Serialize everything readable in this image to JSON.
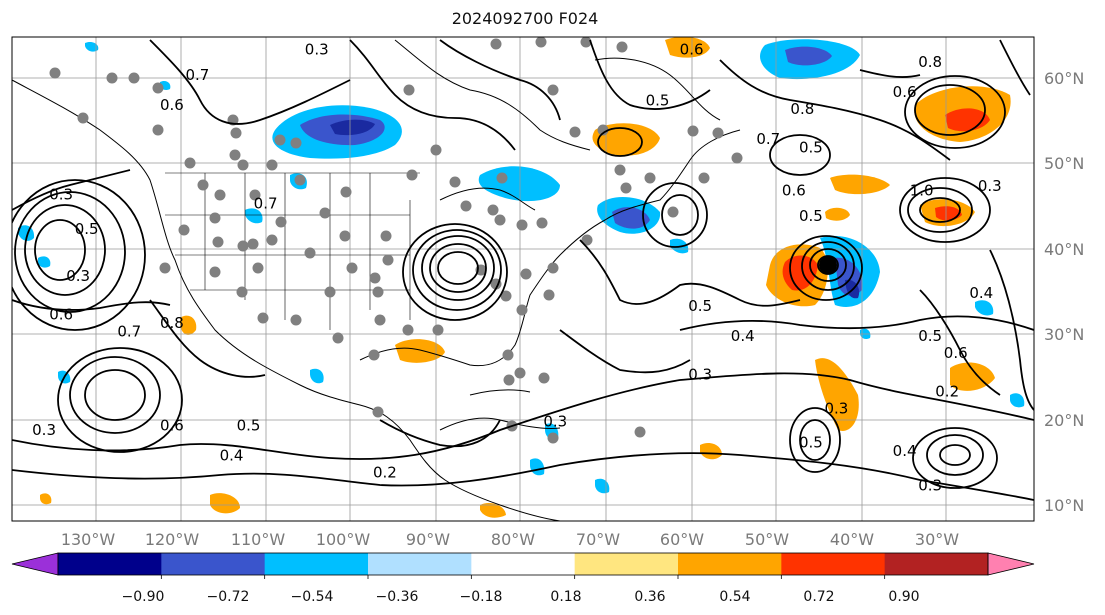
{
  "title": "2024092700 F024",
  "lon_labels": [
    "130°W",
    "120°W",
    "110°W",
    "100°W",
    "90°W",
    "80°W",
    "70°W",
    "60°W",
    "50°W",
    "40°W",
    "30°W"
  ],
  "lat_labels": [
    "60°N",
    "50°N",
    "40°N",
    "30°N",
    "20°N",
    "10°N"
  ],
  "colorbar": {
    "ticks": [
      "−0.90",
      "−0.72",
      "−0.54",
      "−0.36",
      "−0.18",
      "0.18",
      "0.36",
      "0.54",
      "0.72",
      "0.90"
    ],
    "colors": [
      "#9b30d9",
      "#00008b",
      "#3a55cc",
      "#00bfff",
      "#b0e0ff",
      "#ffffff",
      "#ffe680",
      "#ffa500",
      "#ff3300",
      "#b22222",
      "#ff80b0"
    ]
  },
  "contour_labels": [
    "0.2",
    "0.3",
    "0.4",
    "0.5",
    "0.6",
    "0.7",
    "0.8",
    "1.0"
  ],
  "contour_annotations": [
    {
      "text": "0.7",
      "lon": -118,
      "lat": 60
    },
    {
      "text": "0.6",
      "lon": -121,
      "lat": 56.5
    },
    {
      "text": "0.3",
      "lon": -104,
      "lat": 63
    },
    {
      "text": "0.3",
      "lon": -134,
      "lat": 46
    },
    {
      "text": "0.5",
      "lon": -131,
      "lat": 42
    },
    {
      "text": "0.3",
      "lon": -132,
      "lat": 36.5
    },
    {
      "text": "0.6",
      "lon": -134,
      "lat": 32
    },
    {
      "text": "0.7",
      "lon": -126,
      "lat": 30
    },
    {
      "text": "0.8",
      "lon": -121,
      "lat": 31
    },
    {
      "text": "0.3",
      "lon": -136,
      "lat": 18.5
    },
    {
      "text": "0.6",
      "lon": -121,
      "lat": 19
    },
    {
      "text": "0.5",
      "lon": -112,
      "lat": 19
    },
    {
      "text": "0.4",
      "lon": -114,
      "lat": 15.5
    },
    {
      "text": "0.2",
      "lon": -96,
      "lat": 13.5
    },
    {
      "text": "0.3",
      "lon": -76,
      "lat": 19.5
    },
    {
      "text": "0.3",
      "lon": -59,
      "lat": 25
    },
    {
      "text": "0.4",
      "lon": -54,
      "lat": 29.5
    },
    {
      "text": "0.5",
      "lon": -59,
      "lat": 33
    },
    {
      "text": "0.3",
      "lon": -43,
      "lat": 21
    },
    {
      "text": "0.5",
      "lon": -46,
      "lat": 17
    },
    {
      "text": "0.4",
      "lon": -35,
      "lat": 16
    },
    {
      "text": "0.3",
      "lon": -32,
      "lat": 12
    },
    {
      "text": "0.5",
      "lon": -64,
      "lat": 57
    },
    {
      "text": "0.6",
      "lon": -60,
      "lat": 63
    },
    {
      "text": "0.8",
      "lon": -32,
      "lat": 61.5
    },
    {
      "text": "0.6",
      "lon": -35,
      "lat": 58
    },
    {
      "text": "0.8",
      "lon": -47,
      "lat": 56
    },
    {
      "text": "0.7",
      "lon": -51,
      "lat": 52.5
    },
    {
      "text": "0.5",
      "lon": -46,
      "lat": 51.5
    },
    {
      "text": "0.6",
      "lon": -48,
      "lat": 46.5
    },
    {
      "text": "0.5",
      "lon": -46,
      "lat": 43.5
    },
    {
      "text": "1.0",
      "lon": -33,
      "lat": 46.5
    },
    {
      "text": "0.3",
      "lon": -25,
      "lat": 47
    },
    {
      "text": "0.4",
      "lon": -26,
      "lat": 34.5
    },
    {
      "text": "0.5",
      "lon": -32,
      "lat": 29.5
    },
    {
      "text": "0.2",
      "lon": -30,
      "lat": 23
    },
    {
      "text": "0.6",
      "lon": -29,
      "lat": 27.5
    },
    {
      "text": "0.7",
      "lon": -110,
      "lat": 45
    }
  ]
}
